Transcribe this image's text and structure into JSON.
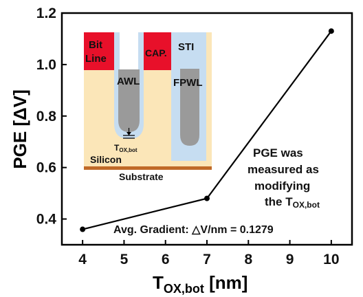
{
  "chart_data": {
    "type": "line",
    "x": [
      4,
      7,
      10
    ],
    "series": [
      {
        "values": [
          0.36,
          0.48,
          1.13
        ],
        "color": "#000000"
      }
    ],
    "xlabel_main": "T",
    "xlabel_sub": "OX,bot",
    "xlabel_unit": " [nm]",
    "ylabel": "PGE [ΔV]",
    "xlim": [
      3.5,
      10.5
    ],
    "ylim": [
      0.3,
      1.2
    ],
    "xticks": [
      "4",
      "5",
      "6",
      "7",
      "8",
      "9",
      "10"
    ],
    "yticks": [
      "0.4",
      "0.6",
      "0.8",
      "1.0",
      "1.2"
    ],
    "grid": false,
    "annotations": {
      "note_lines": [
        "PGE was",
        "measured as",
        "modifying"
      ],
      "note_last_prefix": "the T",
      "note_last_sub": "OX,bot",
      "gradient": "Avg. Gradient: △V/nm = 0.1279"
    },
    "inset": {
      "bit_line_1": "Bit",
      "bit_line_2": "Line",
      "cap": "CAP.",
      "sti": "STI",
      "awl": "AWL",
      "fpwl": "FPWL",
      "tox_main": "T",
      "tox_sub": "OX,bot",
      "silicon": "Silicon",
      "substrate": "Substrate"
    },
    "colors": {
      "red": "#e8102a",
      "silicon": "#fbe6b8",
      "oxide": "#c6ddf1",
      "gate": "#9a9a9a",
      "substrate": "#c06a28"
    }
  }
}
